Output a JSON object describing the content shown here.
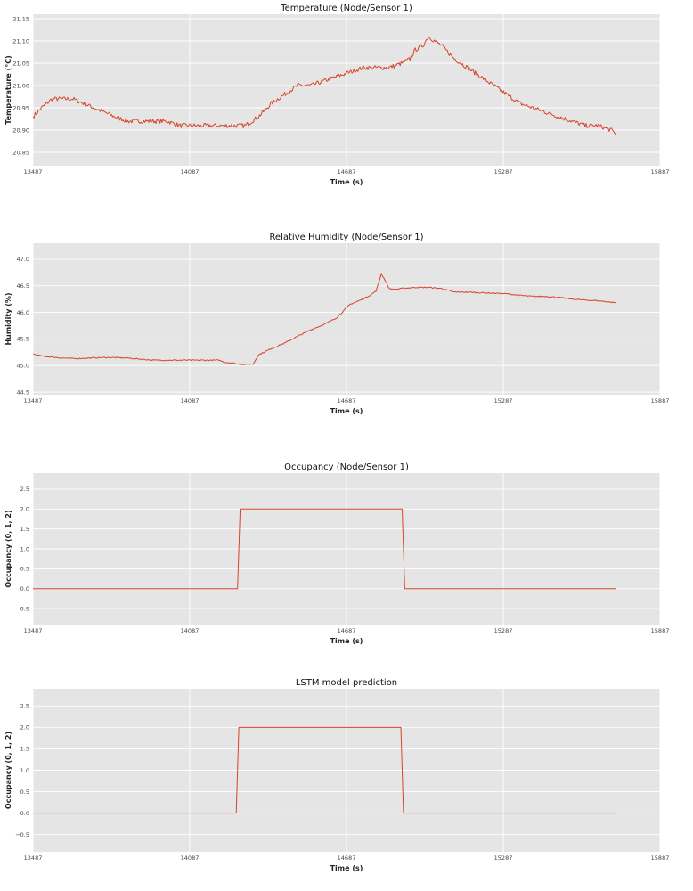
{
  "colors": {
    "background": "#ffffff",
    "plot_background": "#e5e5e5",
    "grid": "#ffffff",
    "line": "#d9442a"
  },
  "chart_data": [
    {
      "type": "line",
      "title": "Temperature (Node/Sensor 1)",
      "xlabel": "Time (s)",
      "ylabel": "Temperature (°C)",
      "xlim": [
        13487,
        15887
      ],
      "ylim": [
        20.82,
        21.16
      ],
      "xticks": [
        13487,
        14087,
        14687,
        15287,
        15887
      ],
      "yticks": [
        20.85,
        20.9,
        20.95,
        21.0,
        21.05,
        21.1,
        21.15
      ],
      "ytick_labels": [
        "20.85",
        "20.90",
        "20.95",
        "21.00",
        "21.05",
        "21.10",
        "21.15"
      ],
      "grid": true,
      "noise": 0.005,
      "series": [
        {
          "x": [
            13487,
            13520,
            13560,
            13600,
            13640,
            13680,
            13720,
            13760,
            13800,
            13850,
            13900,
            13950,
            14000,
            14050,
            14100,
            14150,
            14200,
            14250,
            14300,
            14350,
            14400,
            14450,
            14500,
            14550,
            14600,
            14650,
            14700,
            14750,
            14800,
            14850,
            14900,
            14930,
            14950,
            14980,
            15000,
            15050,
            15100,
            15150,
            15200,
            15250,
            15300,
            15350,
            15400,
            15450,
            15500,
            15550,
            15600,
            15650,
            15700,
            15720
          ],
          "values": [
            20.93,
            20.95,
            20.97,
            20.97,
            20.97,
            20.96,
            20.95,
            20.94,
            20.93,
            20.92,
            20.92,
            20.92,
            20.92,
            20.91,
            20.91,
            20.91,
            20.91,
            20.91,
            20.91,
            20.93,
            20.96,
            20.98,
            21.0,
            21.0,
            21.01,
            21.02,
            21.03,
            21.04,
            21.04,
            21.04,
            21.05,
            21.06,
            21.08,
            21.09,
            21.11,
            21.09,
            21.06,
            21.04,
            21.02,
            21.0,
            20.98,
            20.96,
            20.95,
            20.94,
            20.93,
            20.92,
            20.91,
            20.91,
            20.9,
            20.89
          ]
        }
      ]
    },
    {
      "type": "line",
      "title": "Relative Humidity (Node/Sensor 1)",
      "xlabel": "Time (s)",
      "ylabel": "Humidity (%)",
      "xlim": [
        13487,
        15887
      ],
      "ylim": [
        44.45,
        47.3
      ],
      "xticks": [
        13487,
        14087,
        14687,
        15287,
        15887
      ],
      "yticks": [
        44.5,
        45.0,
        45.5,
        46.0,
        46.5,
        47.0
      ],
      "ytick_labels": [
        "44.5",
        "45.0",
        "45.5",
        "46.0",
        "46.5",
        "47.0"
      ],
      "grid": true,
      "noise": 0.01,
      "series": [
        {
          "x": [
            13487,
            13500,
            13530,
            13560,
            13600,
            13650,
            13700,
            13750,
            13800,
            13850,
            13900,
            13950,
            14000,
            14050,
            14100,
            14150,
            14200,
            14220,
            14250,
            14270,
            14300,
            14330,
            14350,
            14400,
            14450,
            14500,
            14550,
            14600,
            14650,
            14680,
            14700,
            14750,
            14780,
            14800,
            14810,
            14820,
            14835,
            14850,
            14870,
            14900,
            14950,
            15000,
            15050,
            15100,
            15150,
            15200,
            15250,
            15300,
            15350,
            15400,
            15450,
            15500,
            15550,
            15600,
            15650,
            15700,
            15720
          ],
          "values": [
            45.22,
            45.2,
            45.17,
            45.16,
            45.14,
            45.13,
            45.14,
            45.15,
            45.15,
            45.14,
            45.12,
            45.1,
            45.1,
            45.1,
            45.1,
            45.1,
            45.1,
            45.06,
            45.05,
            45.03,
            45.02,
            45.03,
            45.2,
            45.32,
            45.42,
            45.55,
            45.67,
            45.77,
            45.9,
            46.05,
            46.15,
            46.25,
            46.33,
            46.4,
            46.55,
            46.73,
            46.6,
            46.45,
            46.43,
            46.45,
            46.47,
            46.47,
            46.45,
            46.38,
            46.38,
            46.37,
            46.36,
            46.35,
            46.32,
            46.3,
            46.3,
            46.28,
            46.25,
            46.23,
            46.22,
            46.19,
            46.18
          ]
        }
      ]
    },
    {
      "type": "line",
      "title": "Occupancy (Node/Sensor 1)",
      "xlabel": "Time (s)",
      "ylabel": "Occupancy (0, 1, 2)",
      "xlim": [
        13487,
        15887
      ],
      "ylim": [
        -0.9,
        2.9
      ],
      "xticks": [
        13487,
        14087,
        14687,
        15287,
        15887
      ],
      "yticks": [
        -0.5,
        0.0,
        0.5,
        1.0,
        1.5,
        2.0,
        2.5
      ],
      "ytick_labels": [
        "−0.5",
        "0.0",
        "0.5",
        "1.0",
        "1.5",
        "2.0",
        "2.5"
      ],
      "grid": true,
      "noise": 0,
      "series": [
        {
          "x": [
            13487,
            14270,
            14280,
            14900,
            14910,
            15720
          ],
          "values": [
            0,
            0,
            2,
            2,
            0,
            0
          ]
        }
      ]
    },
    {
      "type": "line",
      "title": "LSTM model prediction",
      "xlabel": "Time (s)",
      "ylabel": "Occupancy (0, 1, 2)",
      "xlim": [
        13487,
        15887
      ],
      "ylim": [
        -0.9,
        2.9
      ],
      "xticks": [
        13487,
        14087,
        14687,
        15287,
        15887
      ],
      "yticks": [
        -0.5,
        0.0,
        0.5,
        1.0,
        1.5,
        2.0,
        2.5
      ],
      "ytick_labels": [
        "−0.5",
        "0.0",
        "0.5",
        "1.0",
        "1.5",
        "2.0",
        "2.5"
      ],
      "grid": true,
      "noise": 0,
      "series": [
        {
          "x": [
            13487,
            14265,
            14275,
            14895,
            14905,
            15720
          ],
          "values": [
            0,
            0,
            2,
            2,
            0,
            0
          ]
        }
      ]
    }
  ]
}
